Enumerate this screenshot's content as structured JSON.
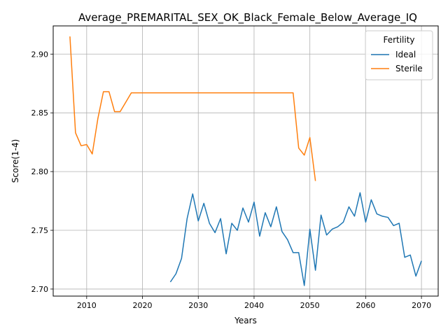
{
  "chart_data": {
    "type": "line",
    "title": "Average_PREMARITAL_SEX_OK_Black_Female_Below_Average_IQ",
    "xlabel": "Years",
    "ylabel": "Score(1-4)",
    "xlim": [
      2004,
      2073
    ],
    "ylim": [
      2.694,
      2.924
    ],
    "xticks": [
      2010,
      2020,
      2030,
      2040,
      2050,
      2060,
      2070
    ],
    "yticks": [
      2.7,
      2.75,
      2.8,
      2.85,
      2.9
    ],
    "xtick_labels": [
      "2010",
      "2020",
      "2030",
      "2040",
      "2050",
      "2060",
      "2070"
    ],
    "ytick_labels": [
      "2.70",
      "2.75",
      "2.80",
      "2.85",
      "2.90"
    ],
    "grid": true,
    "legend": {
      "title": "Fertility",
      "placement": "top-right"
    },
    "series": [
      {
        "name": "Ideal",
        "color": "#1f77b4",
        "x": [
          2025,
          2026,
          2027,
          2028,
          2029,
          2030,
          2031,
          2032,
          2033,
          2034,
          2035,
          2036,
          2037,
          2038,
          2039,
          2040,
          2041,
          2042,
          2043,
          2044,
          2045,
          2046,
          2047,
          2048,
          2049,
          2050,
          2051,
          2052,
          2053,
          2054,
          2055,
          2056,
          2057,
          2058,
          2059,
          2060,
          2061,
          2062,
          2063,
          2064,
          2065,
          2066,
          2067,
          2068,
          2069,
          2070
        ],
        "y": [
          2.706,
          2.713,
          2.726,
          2.76,
          2.781,
          2.758,
          2.773,
          2.756,
          2.748,
          2.76,
          2.73,
          2.756,
          2.75,
          2.769,
          2.757,
          2.774,
          2.745,
          2.765,
          2.753,
          2.77,
          2.749,
          2.742,
          2.731,
          2.731,
          2.703,
          2.751,
          2.716,
          2.763,
          2.746,
          2.751,
          2.753,
          2.757,
          2.77,
          2.762,
          2.782,
          2.757,
          2.776,
          2.764,
          2.762,
          2.761,
          2.754,
          2.756,
          2.727,
          2.729,
          2.711,
          2.724
        ]
      },
      {
        "name": "Sterile",
        "color": "#ff7f0e",
        "x": [
          2007,
          2008,
          2009,
          2010,
          2011,
          2012,
          2013,
          2014,
          2015,
          2016,
          2017,
          2018,
          2019,
          2020,
          2021,
          2022,
          2023,
          2024,
          2025,
          2026,
          2027,
          2028,
          2029,
          2030,
          2031,
          2032,
          2033,
          2034,
          2035,
          2036,
          2037,
          2038,
          2039,
          2040,
          2041,
          2042,
          2043,
          2044,
          2045,
          2046,
          2047,
          2048,
          2049,
          2050,
          2051
        ],
        "y": [
          2.915,
          2.833,
          2.822,
          2.823,
          2.815,
          2.845,
          2.868,
          2.868,
          2.851,
          2.851,
          2.859,
          2.867,
          2.867,
          2.867,
          2.867,
          2.867,
          2.867,
          2.867,
          2.867,
          2.867,
          2.867,
          2.867,
          2.867,
          2.867,
          2.867,
          2.867,
          2.867,
          2.867,
          2.867,
          2.867,
          2.867,
          2.867,
          2.867,
          2.867,
          2.867,
          2.867,
          2.867,
          2.867,
          2.867,
          2.867,
          2.867,
          2.82,
          2.814,
          2.829,
          2.792
        ]
      }
    ]
  }
}
